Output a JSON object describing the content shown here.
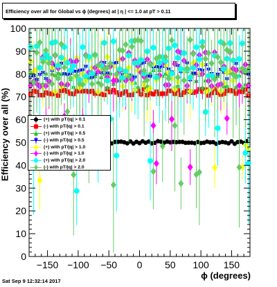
{
  "title": "Efficiency over all for Global vs ϕ (degrees) at | η | <= 1.0 at pT > 0.11",
  "footer_timestamp": "Sat Sep  9 12:32:14 2017",
  "legend": [
    {
      "label": "(+) with pT/|q| > 0.1",
      "color": "#000000",
      "marker": "circle"
    },
    {
      "label": "(-) with pT/|q| > 0.1",
      "color": "#ff0000",
      "marker": "square"
    },
    {
      "label": "(+) with pT/|q| > 0.5",
      "color": "#22bb22",
      "marker": "triangle"
    },
    {
      "label": "(-) with pT/|q| > 0.5",
      "color": "#0000ff",
      "marker": "triangle-down"
    },
    {
      "label": "(+) with pT/|q| > 1.0",
      "color": "#ffff00",
      "marker": "diamond"
    },
    {
      "label": "(-) with pT/|q| > 1.0",
      "color": "#ff00ff",
      "marker": "diamond"
    },
    {
      "label": "(+) with pT/|q| > 2.0",
      "color": "#00ffff",
      "marker": "circle-open"
    },
    {
      "label": "(-) with pT/|q| > 2.0",
      "color": "#66cc66",
      "marker": "diamond"
    }
  ],
  "chart_data": {
    "type": "scatter",
    "title": "Efficiency over all for Global vs ϕ (degrees) at | η | <= 1.0 at pT > 0.11",
    "xlabel": "ϕ (degrees)",
    "ylabel": "Efficiency over all (%)",
    "xlim": [
      -180,
      180
    ],
    "ylim": [
      0,
      100
    ],
    "x_ticks": [
      -150,
      -100,
      -50,
      0,
      50,
      100,
      150
    ],
    "y_ticks": [
      0,
      10,
      20,
      30,
      40,
      50,
      60,
      70,
      80,
      90,
      100
    ],
    "grid": false,
    "legend_position": "middle-left",
    "series": [
      {
        "name": "(+) with pT/|q| > 0.1",
        "color": "#000000",
        "level": 50,
        "spread": 0.6,
        "err": 0.5,
        "x_from": -60
      },
      {
        "name": "(-) with pT/|q| > 0.1",
        "color": "#ff0000",
        "level": 72,
        "spread": 1.5,
        "err": 1.5
      },
      {
        "name": "(+) with pT/|q| > 0.5",
        "color": "#22bb22",
        "level": 78,
        "spread": 4,
        "err": 4
      },
      {
        "name": "(-) with pT/|q| > 0.5",
        "color": "#0000ff",
        "level": 81,
        "spread": 4,
        "err": 4
      },
      {
        "name": "(+) with pT/|q| > 1.0",
        "color": "#ffff00",
        "level": 80,
        "spread": 8,
        "err": 10
      },
      {
        "name": "(-) with pT/|q| > 1.0",
        "color": "#ff00ff",
        "level": 82,
        "spread": 8,
        "err": 10
      },
      {
        "name": "(+) with pT/|q| > 2.0",
        "color": "#00ffff",
        "level": 86,
        "spread": 9,
        "err": 18
      },
      {
        "name": "(-) with pT/|q| > 2.0",
        "color": "#66cc66",
        "level": 85,
        "spread": 10,
        "err": 20
      }
    ]
  }
}
